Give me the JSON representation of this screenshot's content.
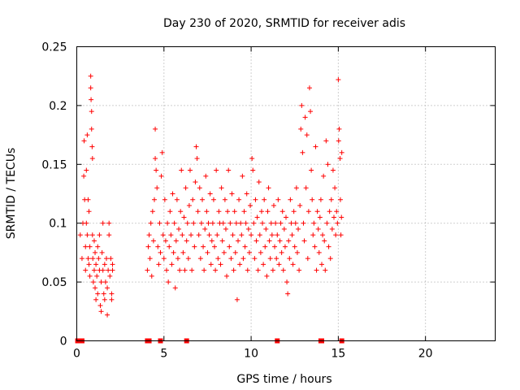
{
  "chart_data": {
    "type": "scatter",
    "title": "Day 230 of 2020, SRMTID for receiver adis",
    "xlabel": "GPS time / hours",
    "ylabel": "SRMTID / TECUs",
    "xlim": [
      0,
      24
    ],
    "ylim": [
      0,
      0.25
    ],
    "xticks": [
      0,
      5,
      10,
      15,
      20
    ],
    "yticks": [
      0,
      0.05,
      0.1,
      0.15,
      0.2,
      0.25
    ],
    "xtick_labels": [
      "0",
      "5",
      "10",
      "15",
      "20"
    ],
    "ytick_labels": [
      "0",
      "0.05",
      "0.1",
      "0.15",
      "0.2",
      "0.25"
    ],
    "grid": true,
    "marker": "plus",
    "color": "#ff0000",
    "series": [
      {
        "values_note_points": "x in hours, y in TECU",
        "points": [
          [
            0.2,
            0.09
          ],
          [
            0.3,
            0.07
          ],
          [
            0.35,
            0.1
          ],
          [
            0.4,
            0.14
          ],
          [
            0.42,
            0.17
          ],
          [
            0.45,
            0.12
          ],
          [
            0.5,
            0.08
          ],
          [
            0.5,
            0.06
          ],
          [
            0.55,
            0.145
          ],
          [
            0.55,
            0.1
          ],
          [
            0.6,
            0.175
          ],
          [
            0.6,
            0.09
          ],
          [
            0.65,
            0.07
          ],
          [
            0.65,
            0.12
          ],
          [
            0.7,
            0.11
          ],
          [
            0.7,
            0.065
          ],
          [
            0.75,
            0.055
          ],
          [
            0.75,
            0.08
          ],
          [
            0.8,
            0.215
          ],
          [
            0.8,
            0.225
          ],
          [
            0.82,
            0.205
          ],
          [
            0.85,
            0.195
          ],
          [
            0.85,
            0.18
          ],
          [
            0.88,
            0.165
          ],
          [
            0.9,
            0.155
          ],
          [
            0.9,
            0.09
          ],
          [
            0.92,
            0.07
          ],
          [
            0.95,
            0.05
          ],
          [
            1.0,
            0.06
          ],
          [
            1.0,
            0.085
          ],
          [
            1.05,
            0.045
          ],
          [
            1.05,
            0.075
          ],
          [
            1.1,
            0.035
          ],
          [
            1.1,
            0.065
          ],
          [
            1.15,
            0.055
          ],
          [
            1.2,
            0.08
          ],
          [
            1.2,
            0.04
          ],
          [
            1.25,
            0.07
          ],
          [
            1.3,
            0.06
          ],
          [
            1.3,
            0.09
          ],
          [
            1.35,
            0.03
          ],
          [
            1.4,
            0.025
          ],
          [
            1.4,
            0.05
          ],
          [
            1.45,
            0.075
          ],
          [
            1.5,
            0.06
          ],
          [
            1.5,
            0.1
          ],
          [
            1.55,
            0.04
          ],
          [
            1.6,
            0.065
          ],
          [
            1.6,
            0.035
          ],
          [
            1.65,
            0.05
          ],
          [
            1.7,
            0.07
          ],
          [
            1.75,
            0.045
          ],
          [
            1.75,
            0.022
          ],
          [
            1.8,
            0.06
          ],
          [
            1.85,
            0.1
          ],
          [
            1.85,
            0.09
          ],
          [
            1.9,
            0.055
          ],
          [
            1.95,
            0.07
          ],
          [
            2.0,
            0.04
          ],
          [
            2.0,
            0.035
          ],
          [
            2.05,
            0.06
          ],
          [
            2.05,
            0.065
          ],
          [
            4.05,
            0.06
          ],
          [
            4.1,
            0.08
          ],
          [
            4.15,
            0.09
          ],
          [
            4.2,
            0.07
          ],
          [
            4.25,
            0.1
          ],
          [
            4.3,
            0.055
          ],
          [
            4.35,
            0.11
          ],
          [
            4.4,
            0.085
          ],
          [
            4.45,
            0.12
          ],
          [
            4.5,
            0.18
          ],
          [
            4.5,
            0.155
          ],
          [
            4.55,
            0.145
          ],
          [
            4.6,
            0.13
          ],
          [
            4.65,
            0.08
          ],
          [
            4.7,
            0.065
          ],
          [
            4.75,
            0.1
          ],
          [
            4.8,
            0.075
          ],
          [
            4.85,
            0.14
          ],
          [
            4.9,
            0.16
          ],
          [
            4.95,
            0.09
          ],
          [
            5.0,
            0.07
          ],
          [
            5.05,
            0.12
          ],
          [
            5.1,
            0.085
          ],
          [
            5.15,
            0.06
          ],
          [
            5.2,
            0.1
          ],
          [
            5.25,
            0.05
          ],
          [
            5.3,
            0.08
          ],
          [
            5.35,
            0.11
          ],
          [
            5.4,
            0.09
          ],
          [
            5.45,
            0.065
          ],
          [
            5.5,
            0.125
          ],
          [
            5.55,
            0.075
          ],
          [
            5.6,
            0.1
          ],
          [
            5.65,
            0.045
          ],
          [
            5.7,
            0.085
          ],
          [
            5.75,
            0.12
          ],
          [
            5.8,
            0.07
          ],
          [
            5.85,
            0.095
          ],
          [
            5.9,
            0.06
          ],
          [
            5.95,
            0.11
          ],
          [
            6.0,
            0.145
          ],
          [
            6.05,
            0.09
          ],
          [
            6.1,
            0.075
          ],
          [
            6.15,
            0.105
          ],
          [
            6.2,
            0.06
          ],
          [
            6.25,
            0.13
          ],
          [
            6.3,
            0.085
          ],
          [
            6.35,
            0.1
          ],
          [
            6.4,
            0.07
          ],
          [
            6.45,
            0.115
          ],
          [
            6.5,
            0.145
          ],
          [
            6.55,
            0.09
          ],
          [
            6.6,
            0.06
          ],
          [
            6.65,
            0.12
          ],
          [
            6.7,
            0.1
          ],
          [
            6.75,
            0.08
          ],
          [
            6.8,
            0.135
          ],
          [
            6.85,
            0.165
          ],
          [
            6.9,
            0.155
          ],
          [
            6.95,
            0.11
          ],
          [
            7.0,
            0.09
          ],
          [
            7.05,
            0.13
          ],
          [
            7.1,
            0.07
          ],
          [
            7.15,
            0.1
          ],
          [
            7.2,
            0.12
          ],
          [
            7.25,
            0.08
          ],
          [
            7.3,
            0.06
          ],
          [
            7.35,
            0.095
          ],
          [
            7.4,
            0.14
          ],
          [
            7.45,
            0.11
          ],
          [
            7.5,
            0.075
          ],
          [
            7.55,
            0.1
          ],
          [
            7.6,
            0.09
          ],
          [
            7.65,
            0.125
          ],
          [
            7.7,
            0.065
          ],
          [
            7.75,
            0.085
          ],
          [
            7.8,
            0.1
          ],
          [
            7.85,
            0.12
          ],
          [
            7.9,
            0.08
          ],
          [
            7.95,
            0.06
          ],
          [
            8.0,
            0.145
          ],
          [
            8.05,
            0.09
          ],
          [
            8.1,
            0.07
          ],
          [
            8.15,
            0.11
          ],
          [
            8.2,
            0.1
          ],
          [
            8.25,
            0.065
          ],
          [
            8.3,
            0.13
          ],
          [
            8.35,
            0.085
          ],
          [
            8.4,
            0.1
          ],
          [
            8.45,
            0.075
          ],
          [
            8.5,
            0.12
          ],
          [
            8.55,
            0.095
          ],
          [
            8.6,
            0.055
          ],
          [
            8.65,
            0.11
          ],
          [
            8.7,
            0.145
          ],
          [
            8.75,
            0.08
          ],
          [
            8.8,
            0.1
          ],
          [
            8.85,
            0.07
          ],
          [
            8.9,
            0.125
          ],
          [
            8.95,
            0.09
          ],
          [
            9.0,
            0.06
          ],
          [
            9.05,
            0.11
          ],
          [
            9.1,
            0.075
          ],
          [
            9.15,
            0.1
          ],
          [
            9.2,
            0.035
          ],
          [
            9.25,
            0.085
          ],
          [
            9.3,
            0.12
          ],
          [
            9.35,
            0.065
          ],
          [
            9.4,
            0.1
          ],
          [
            9.45,
            0.09
          ],
          [
            9.5,
            0.14
          ],
          [
            9.55,
            0.07
          ],
          [
            9.6,
            0.11
          ],
          [
            9.65,
            0.08
          ],
          [
            9.7,
            0.1
          ],
          [
            9.75,
            0.125
          ],
          [
            9.8,
            0.06
          ],
          [
            9.85,
            0.095
          ],
          [
            9.9,
            0.075
          ],
          [
            9.95,
            0.115
          ],
          [
            10.0,
            0.09
          ],
          [
            10.05,
            0.155
          ],
          [
            10.1,
            0.145
          ],
          [
            10.15,
            0.1
          ],
          [
            10.2,
            0.07
          ],
          [
            10.25,
            0.12
          ],
          [
            10.3,
            0.085
          ],
          [
            10.35,
            0.105
          ],
          [
            10.4,
            0.06
          ],
          [
            10.45,
            0.135
          ],
          [
            10.5,
            0.09
          ],
          [
            10.55,
            0.075
          ],
          [
            10.6,
            0.11
          ],
          [
            10.65,
            0.1
          ],
          [
            10.7,
            0.065
          ],
          [
            10.75,
            0.12
          ],
          [
            10.8,
            0.08
          ],
          [
            10.85,
            0.095
          ],
          [
            10.9,
            0.055
          ],
          [
            10.95,
            0.11
          ],
          [
            11.0,
            0.13
          ],
          [
            11.05,
            0.085
          ],
          [
            11.1,
            0.07
          ],
          [
            11.15,
            0.1
          ],
          [
            11.2,
            0.09
          ],
          [
            11.25,
            0.06
          ],
          [
            11.3,
            0.115
          ],
          [
            11.35,
            0.08
          ],
          [
            11.4,
            0.1
          ],
          [
            11.45,
            0.07
          ],
          [
            11.5,
            0.09
          ],
          [
            11.55,
            0.12
          ],
          [
            11.6,
            0.065
          ],
          [
            11.65,
            0.085
          ],
          [
            11.7,
            0.1
          ],
          [
            11.75,
            0.075
          ],
          [
            11.8,
            0.11
          ],
          [
            11.85,
            0.06
          ],
          [
            11.9,
            0.095
          ],
          [
            11.95,
            0.08
          ],
          [
            12.0,
            0.105
          ],
          [
            12.05,
            0.05
          ],
          [
            12.1,
            0.04
          ],
          [
            12.15,
            0.085
          ],
          [
            12.2,
            0.07
          ],
          [
            12.25,
            0.12
          ],
          [
            12.3,
            0.1
          ],
          [
            12.35,
            0.09
          ],
          [
            12.4,
            0.065
          ],
          [
            12.45,
            0.11
          ],
          [
            12.5,
            0.08
          ],
          [
            12.55,
            0.1
          ],
          [
            12.6,
            0.13
          ],
          [
            12.65,
            0.075
          ],
          [
            12.7,
            0.095
          ],
          [
            12.75,
            0.06
          ],
          [
            12.8,
            0.115
          ],
          [
            12.85,
            0.18
          ],
          [
            12.9,
            0.2
          ],
          [
            12.95,
            0.16
          ],
          [
            13.0,
            0.1
          ],
          [
            13.05,
            0.085
          ],
          [
            13.1,
            0.19
          ],
          [
            13.15,
            0.13
          ],
          [
            13.2,
            0.175
          ],
          [
            13.25,
            0.07
          ],
          [
            13.3,
            0.11
          ],
          [
            13.35,
            0.215
          ],
          [
            13.4,
            0.195
          ],
          [
            13.45,
            0.145
          ],
          [
            13.5,
            0.12
          ],
          [
            13.55,
            0.09
          ],
          [
            13.6,
            0.1
          ],
          [
            13.65,
            0.08
          ],
          [
            13.7,
            0.165
          ],
          [
            13.75,
            0.06
          ],
          [
            13.8,
            0.11
          ],
          [
            13.85,
            0.095
          ],
          [
            13.9,
            0.075
          ],
          [
            13.95,
            0.105
          ],
          [
            14.0,
            0.12
          ],
          [
            14.05,
            0.065
          ],
          [
            14.1,
            0.09
          ],
          [
            14.15,
            0.14
          ],
          [
            14.2,
            0.085
          ],
          [
            14.25,
            0.06
          ],
          [
            14.3,
            0.17
          ],
          [
            14.35,
            0.1
          ],
          [
            14.4,
            0.15
          ],
          [
            14.45,
            0.08
          ],
          [
            14.5,
            0.11
          ],
          [
            14.55,
            0.07
          ],
          [
            14.6,
            0.12
          ],
          [
            14.65,
            0.095
          ],
          [
            14.7,
            0.145
          ],
          [
            14.75,
            0.105
          ],
          [
            14.8,
            0.13
          ],
          [
            14.85,
            0.09
          ],
          [
            14.9,
            0.11
          ],
          [
            14.95,
            0.1
          ],
          [
            15.0,
            0.222
          ],
          [
            15.02,
            0.17
          ],
          [
            15.05,
            0.18
          ],
          [
            15.1,
            0.155
          ],
          [
            15.12,
            0.12
          ],
          [
            15.15,
            0.09
          ],
          [
            15.18,
            0.105
          ],
          [
            15.2,
            0.16
          ]
        ]
      }
    ],
    "zero_points_x": [
      0.05,
      0.15,
      0.3,
      4.05,
      4.15,
      4.8,
      6.3,
      11.5,
      14.0,
      14.05,
      15.2
    ]
  }
}
